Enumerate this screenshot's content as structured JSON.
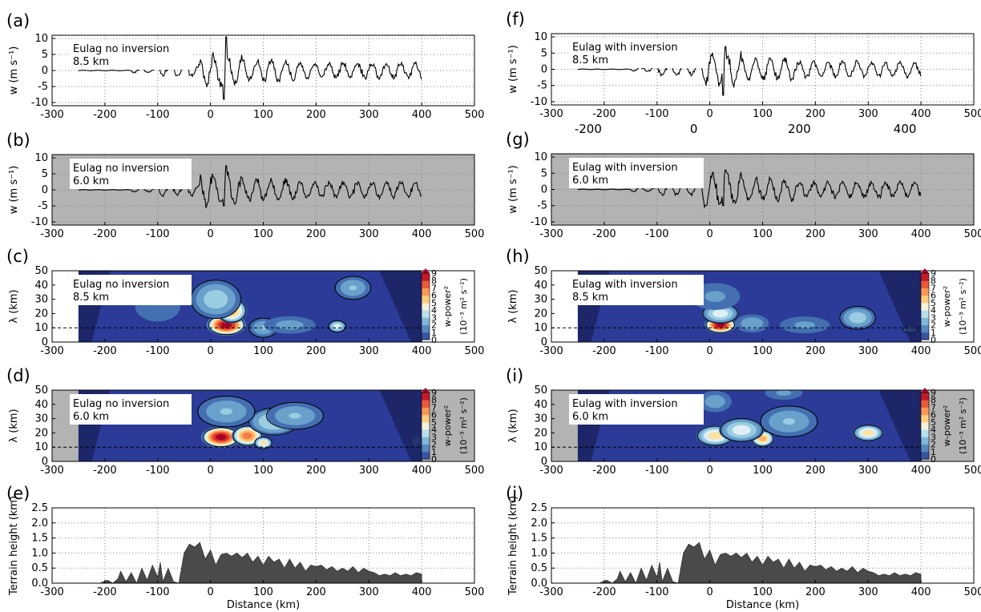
{
  "figure": {
    "colors": {
      "line": "#000000",
      "terrain_fill": "#4a4a4a",
      "night_shade": "#b3b3b3",
      "wavelet_bg": "#2b3b97",
      "cone_shade": "#1a2360",
      "grid": "#808080",
      "inset_bg": "#ffffff"
    },
    "extra_ticks": [
      "-200",
      "0",
      "200",
      "400"
    ]
  },
  "chart_data": [
    {
      "panel": "(a)",
      "type": "line",
      "ylabel": "w (m s⁻¹)",
      "xlabel": "",
      "label_lines": [
        "Eulag no inversion",
        "8.5 km"
      ],
      "xlim": [
        -300,
        500
      ],
      "ylim": [
        -11,
        11
      ],
      "xticks": [
        -300,
        -200,
        -100,
        0,
        100,
        200,
        300,
        400,
        500
      ],
      "yticks": [
        -10,
        -5,
        0,
        5,
        10
      ],
      "background": "white",
      "grid": true,
      "series": [
        {
          "x_range": [
            -250,
            400
          ],
          "seed": 11,
          "peak": 10.5,
          "trough": -9
        }
      ]
    },
    {
      "panel": "(b)",
      "type": "line",
      "ylabel": "w (m s⁻¹)",
      "xlabel": "",
      "label_lines": [
        "Eulag no inversion",
        "6.0 km"
      ],
      "xlim": [
        -300,
        500
      ],
      "ylim": [
        -11,
        11
      ],
      "xticks": [
        -300,
        -200,
        -100,
        0,
        100,
        200,
        300,
        400,
        500
      ],
      "yticks": [
        -10,
        -5,
        0,
        5,
        10
      ],
      "background": "gray",
      "grid": true,
      "series": [
        {
          "x_range": [
            -250,
            400
          ],
          "seed": 23,
          "peak": 7.5,
          "trough": -5
        }
      ]
    },
    {
      "panel": "(c)",
      "type": "heatmap",
      "ylabel": "λ (km)",
      "xlabel": "",
      "label_lines": [
        "Eulag no inversion",
        "8.5 km"
      ],
      "xlim": [
        -300,
        500
      ],
      "ylim": [
        0,
        50
      ],
      "xticks": [
        -300,
        -200,
        -100,
        0,
        100,
        200,
        300,
        400,
        500
      ],
      "yticks": [
        0,
        10,
        20,
        30,
        40,
        50
      ],
      "background": "white",
      "grid": false,
      "reference_line": 10,
      "colorbar": {
        "title": "w-power²",
        "units": "(10⁻³ m² s⁻²)",
        "ticks": [
          "0",
          "1",
          "2",
          "3",
          "4",
          "5",
          "6",
          "7",
          "8",
          "9"
        ]
      },
      "hotspots": [
        {
          "x": 30,
          "y": 12,
          "amplitude": 9.0,
          "sx": 25,
          "sy": 5
        },
        {
          "x": 40,
          "y": 22,
          "amplitude": 6.0,
          "sx": 20,
          "sy": 6
        },
        {
          "x": 10,
          "y": 30,
          "amplitude": 3.0,
          "sx": 35,
          "sy": 10
        },
        {
          "x": 100,
          "y": 10,
          "amplitude": 2.5,
          "sx": 20,
          "sy": 5
        },
        {
          "x": 240,
          "y": 11,
          "amplitude": 4.0,
          "sx": 12,
          "sy": 3
        },
        {
          "x": 270,
          "y": 38,
          "amplitude": 2.5,
          "sx": 25,
          "sy": 6
        },
        {
          "x": 150,
          "y": 12,
          "amplitude": 1.8,
          "sx": 40,
          "sy": 5
        },
        {
          "x": -100,
          "y": 25,
          "amplitude": 1.2,
          "sx": 40,
          "sy": 10
        }
      ]
    },
    {
      "panel": "(d)",
      "type": "heatmap",
      "ylabel": "λ (km)",
      "xlabel": "",
      "label_lines": [
        "Eulag no inversion",
        "6.0 km"
      ],
      "xlim": [
        -300,
        500
      ],
      "ylim": [
        0,
        50
      ],
      "xticks": [
        -300,
        -200,
        -100,
        0,
        100,
        200,
        300,
        400,
        500
      ],
      "yticks": [
        0,
        10,
        20,
        30,
        40,
        50
      ],
      "background": "gray",
      "grid": false,
      "reference_line": 10,
      "colorbar": {
        "title": "w-power²",
        "units": "(10⁻³ m² s⁻²)",
        "ticks": [
          "0",
          "1",
          "2",
          "3",
          "4",
          "5",
          "6",
          "7",
          "8",
          "9"
        ]
      },
      "hotspots": [
        {
          "x": 20,
          "y": 17,
          "amplitude": 9.0,
          "sx": 25,
          "sy": 5
        },
        {
          "x": 70,
          "y": 18,
          "amplitude": 7.0,
          "sx": 20,
          "sy": 5
        },
        {
          "x": 100,
          "y": 13,
          "amplitude": 5.0,
          "sx": 12,
          "sy": 3
        },
        {
          "x": 120,
          "y": 28,
          "amplitude": 3.5,
          "sx": 35,
          "sy": 7
        },
        {
          "x": 30,
          "y": 35,
          "amplitude": 2.5,
          "sx": 40,
          "sy": 8
        },
        {
          "x": 160,
          "y": 32,
          "amplitude": 2.5,
          "sx": 40,
          "sy": 7
        },
        {
          "x": 390,
          "y": 14,
          "amplitude": 2.0,
          "sx": 8,
          "sy": 3
        }
      ]
    },
    {
      "panel": "(e)",
      "type": "area",
      "ylabel": "Terrain height (km)",
      "xlabel": "Distance (km)",
      "label_lines": [],
      "xlim": [
        -300,
        500
      ],
      "ylim": [
        0,
        2.5
      ],
      "xticks": [
        -300,
        -200,
        -100,
        0,
        100,
        200,
        300,
        400,
        500
      ],
      "yticks": [
        0.0,
        0.5,
        1.0,
        1.5,
        2.0,
        2.5
      ],
      "background": "white",
      "grid": true,
      "terrain": {
        "x": [
          -250,
          -210,
          -195,
          -185,
          -175,
          -170,
          -160,
          -150,
          -140,
          -130,
          -120,
          -110,
          -100,
          -95,
          -90,
          -80,
          -70,
          -60,
          -50,
          -40,
          -30,
          -20,
          -10,
          0,
          10,
          20,
          30,
          40,
          50,
          60,
          70,
          80,
          90,
          100,
          110,
          120,
          130,
          140,
          150,
          160,
          170,
          180,
          190,
          200,
          210,
          220,
          230,
          240,
          250,
          260,
          270,
          280,
          290,
          300,
          310,
          320,
          330,
          340,
          350,
          360,
          370,
          380,
          390,
          400
        ],
        "y": [
          0.0,
          0.0,
          0.1,
          0.0,
          0.15,
          0.4,
          0.05,
          0.35,
          0.0,
          0.5,
          0.1,
          0.6,
          0.2,
          0.7,
          0.05,
          0.5,
          0.05,
          0.0,
          1.0,
          1.3,
          1.2,
          1.35,
          0.8,
          1.1,
          0.6,
          0.95,
          1.0,
          0.9,
          1.0,
          0.85,
          1.0,
          0.7,
          0.9,
          0.6,
          0.9,
          0.7,
          0.8,
          0.5,
          0.8,
          0.5,
          0.7,
          0.4,
          0.6,
          0.55,
          0.6,
          0.45,
          0.55,
          0.4,
          0.5,
          0.4,
          0.55,
          0.35,
          0.5,
          0.4,
          0.35,
          0.25,
          0.3,
          0.25,
          0.35,
          0.25,
          0.3,
          0.25,
          0.35,
          0.3
        ]
      }
    },
    {
      "panel": "(f)",
      "type": "line",
      "ylabel": "w (m s⁻¹)",
      "xlabel": "",
      "label_lines": [
        "Eulag with inversion",
        "8.5 km"
      ],
      "xlim": [
        -300,
        500
      ],
      "ylim": [
        -11,
        11
      ],
      "xticks": [
        -300,
        -200,
        -100,
        0,
        100,
        200,
        300,
        400,
        500
      ],
      "yticks": [
        -10,
        -5,
        0,
        5,
        10
      ],
      "background": "white",
      "grid": true,
      "series": [
        {
          "x_range": [
            -250,
            400
          ],
          "seed": 37,
          "peak": 7,
          "trough": -8
        }
      ]
    },
    {
      "panel": "(g)",
      "type": "line",
      "ylabel": "w (m s⁻¹)",
      "xlabel": "",
      "label_lines": [
        "Eulag with inversion",
        "6.0 km"
      ],
      "xlim": [
        -300,
        500
      ],
      "ylim": [
        -11,
        11
      ],
      "xticks": [
        -300,
        -200,
        -100,
        0,
        100,
        200,
        300,
        400,
        500
      ],
      "yticks": [
        -10,
        -5,
        0,
        5,
        10
      ],
      "background": "gray",
      "grid": true,
      "series": [
        {
          "x_range": [
            -250,
            400
          ],
          "seed": 53,
          "peak": 6,
          "trough": -5
        }
      ]
    },
    {
      "panel": "(h)",
      "type": "heatmap",
      "ylabel": "λ (km)",
      "xlabel": "",
      "label_lines": [
        "Eulag with inversion",
        "8.5 km"
      ],
      "xlim": [
        -300,
        500
      ],
      "ylim": [
        0,
        50
      ],
      "xticks": [
        -300,
        -200,
        -100,
        0,
        100,
        200,
        300,
        400,
        500
      ],
      "yticks": [
        0,
        10,
        20,
        30,
        40,
        50
      ],
      "background": "white",
      "grid": false,
      "reference_line": 10,
      "colorbar": {
        "title": "w-power²",
        "units": "(10⁻³ m² s⁻²)",
        "ticks": [
          "0",
          "1",
          "2",
          "3",
          "4",
          "5",
          "6",
          "7",
          "8",
          "9"
        ]
      },
      "hotspots": [
        {
          "x": 20,
          "y": 12,
          "amplitude": 9.0,
          "sx": 20,
          "sy": 4
        },
        {
          "x": 20,
          "y": 20,
          "amplitude": 4.0,
          "sx": 25,
          "sy": 5
        },
        {
          "x": 80,
          "y": 13,
          "amplitude": 2.2,
          "sx": 25,
          "sy": 5
        },
        {
          "x": 280,
          "y": 17,
          "amplitude": 3.0,
          "sx": 25,
          "sy": 6
        },
        {
          "x": 380,
          "y": 9,
          "amplitude": 3.0,
          "sx": 10,
          "sy": 2
        },
        {
          "x": 180,
          "y": 12,
          "amplitude": 1.6,
          "sx": 40,
          "sy": 5
        },
        {
          "x": 10,
          "y": 32,
          "amplitude": 1.6,
          "sx": 40,
          "sy": 8
        }
      ]
    },
    {
      "panel": "(i)",
      "type": "heatmap",
      "ylabel": "λ (km)",
      "xlabel": "",
      "label_lines": [
        "Eulag with inversion",
        "6.0 km"
      ],
      "xlim": [
        -300,
        500
      ],
      "ylim": [
        0,
        50
      ],
      "xticks": [
        -300,
        -200,
        -100,
        0,
        100,
        200,
        300,
        400,
        500
      ],
      "yticks": [
        0,
        10,
        20,
        30,
        40,
        50
      ],
      "background": "gray",
      "grid": false,
      "reference_line": 10,
      "colorbar": {
        "title": "w-power²",
        "units": "(10⁻³ m² s⁻²)",
        "ticks": [
          "0",
          "1",
          "2",
          "3",
          "4",
          "5",
          "6",
          "7",
          "8",
          "9"
        ]
      },
      "hotspots": [
        {
          "x": 10,
          "y": 18,
          "amplitude": 5.0,
          "sx": 25,
          "sy": 5
        },
        {
          "x": 100,
          "y": 16,
          "amplitude": 6.0,
          "sx": 15,
          "sy": 4
        },
        {
          "x": 60,
          "y": 22,
          "amplitude": 4.0,
          "sx": 30,
          "sy": 6
        },
        {
          "x": 300,
          "y": 20,
          "amplitude": 5.0,
          "sx": 20,
          "sy": 4
        },
        {
          "x": 150,
          "y": 28,
          "amplitude": 2.5,
          "sx": 40,
          "sy": 8
        },
        {
          "x": 10,
          "y": 42,
          "amplitude": 2.0,
          "sx": 25,
          "sy": 6
        },
        {
          "x": 140,
          "y": 48,
          "amplitude": 1.6,
          "sx": 30,
          "sy": 4
        }
      ]
    },
    {
      "panel": "(j)",
      "type": "area",
      "ylabel": "Terrain height (km)",
      "xlabel": "Distance (km)",
      "label_lines": [],
      "xlim": [
        -300,
        500
      ],
      "ylim": [
        0,
        2.5
      ],
      "xticks": [
        -300,
        -200,
        -100,
        0,
        100,
        200,
        300,
        400,
        500
      ],
      "yticks": [
        0.0,
        0.5,
        1.0,
        1.5,
        2.0,
        2.5
      ],
      "background": "white",
      "grid": true,
      "terrain": {
        "x": [
          -250,
          -210,
          -195,
          -185,
          -175,
          -170,
          -160,
          -150,
          -140,
          -130,
          -120,
          -110,
          -100,
          -95,
          -90,
          -80,
          -70,
          -60,
          -50,
          -40,
          -30,
          -20,
          -10,
          0,
          10,
          20,
          30,
          40,
          50,
          60,
          70,
          80,
          90,
          100,
          110,
          120,
          130,
          140,
          150,
          160,
          170,
          180,
          190,
          200,
          210,
          220,
          230,
          240,
          250,
          260,
          270,
          280,
          290,
          300,
          310,
          320,
          330,
          340,
          350,
          360,
          370,
          380,
          390,
          400
        ],
        "y": [
          0.0,
          0.0,
          0.1,
          0.0,
          0.15,
          0.4,
          0.05,
          0.35,
          0.0,
          0.5,
          0.1,
          0.6,
          0.2,
          0.7,
          0.05,
          0.5,
          0.05,
          0.0,
          1.0,
          1.3,
          1.2,
          1.35,
          0.8,
          1.1,
          0.6,
          0.95,
          1.0,
          0.9,
          1.0,
          0.85,
          1.0,
          0.7,
          0.9,
          0.6,
          0.9,
          0.7,
          0.8,
          0.5,
          0.8,
          0.5,
          0.7,
          0.4,
          0.6,
          0.55,
          0.6,
          0.45,
          0.55,
          0.4,
          0.5,
          0.4,
          0.55,
          0.35,
          0.5,
          0.4,
          0.35,
          0.25,
          0.3,
          0.25,
          0.35,
          0.25,
          0.3,
          0.25,
          0.35,
          0.3
        ]
      }
    }
  ]
}
